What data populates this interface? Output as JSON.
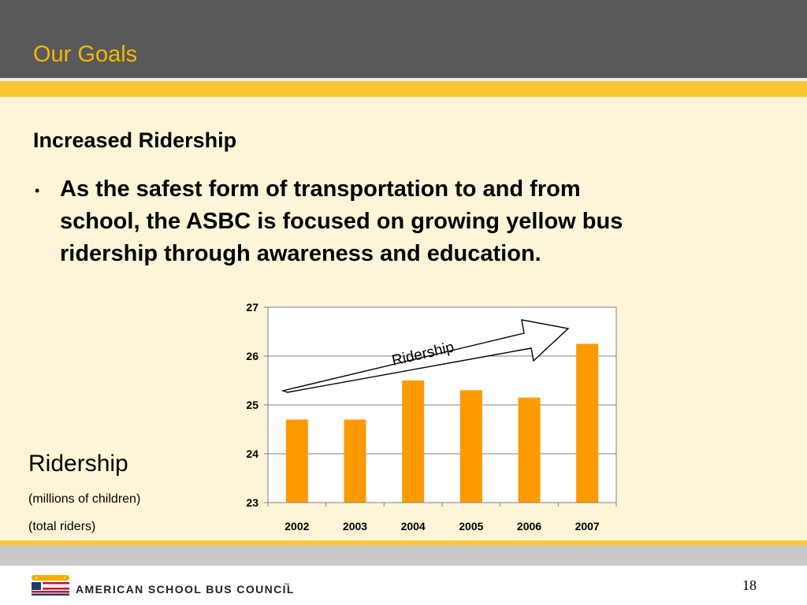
{
  "slide": {
    "title": "Our Goals",
    "subtitle": "Increased Ridership",
    "bullet_marker": "•",
    "bullet_text": "As the safest form of transportation to and from school, the ASBC is focused on growing yellow bus ridership through awareness and education.",
    "side_label": "Ridership",
    "side_sub1": "(millions of children)",
    "side_sub2": "(total riders)",
    "page_number": "18"
  },
  "footer": {
    "logo_text": "AMERICAN SCHOOL BUS COUNCIL",
    "trademark": "™"
  },
  "colors": {
    "header": "#59595b",
    "title": "#f5b800",
    "gold": "#fbc534",
    "content_background": "#fef5d9",
    "bar": "#ff9900"
  },
  "chart_data": {
    "type": "bar",
    "categories": [
      "2002",
      "2003",
      "2004",
      "2005",
      "2006",
      "2007"
    ],
    "values": [
      24.7,
      24.7,
      25.5,
      25.3,
      25.15,
      26.25
    ],
    "ylim": [
      23,
      27
    ],
    "yticks": [
      23,
      24,
      25,
      26,
      27
    ],
    "grid": true,
    "title": "",
    "xlabel": "",
    "ylabel": "",
    "annotation": {
      "label": "Ridership",
      "shape": "upward arrow"
    }
  }
}
